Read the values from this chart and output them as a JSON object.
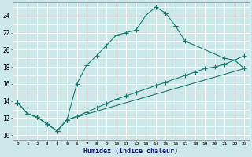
{
  "xlabel": "Humidex (Indice chaleur)",
  "bg_color": "#cde8e8",
  "grid_color": "#ffffff",
  "line_color": "#1a7a6e",
  "xlim": [
    -0.5,
    23.5
  ],
  "ylim": [
    9.5,
    25.5
  ],
  "xticks": [
    0,
    1,
    2,
    3,
    4,
    5,
    6,
    7,
    8,
    9,
    10,
    11,
    12,
    13,
    14,
    15,
    16,
    17,
    18,
    19,
    20,
    21,
    22,
    23
  ],
  "yticks": [
    10,
    12,
    14,
    16,
    18,
    20,
    22,
    24
  ],
  "line1_x": [
    0,
    1,
    2,
    3,
    4,
    5,
    6,
    7,
    8,
    9,
    10,
    11,
    12,
    13,
    14,
    15,
    16,
    17,
    21,
    22,
    23
  ],
  "line1_y": [
    13.8,
    12.5,
    12.1,
    11.3,
    10.5,
    11.8,
    16.0,
    18.2,
    19.3,
    20.5,
    21.7,
    22.0,
    22.3,
    24.0,
    25.0,
    24.3,
    22.8,
    21.0,
    19.0,
    18.8,
    19.3
  ],
  "line2_x": [
    0,
    1,
    2,
    3,
    4,
    5,
    6,
    7,
    8,
    9,
    10,
    11,
    12,
    13,
    14,
    15,
    16,
    17,
    18,
    19,
    20,
    21,
    22,
    23
  ],
  "line2_y": [
    13.8,
    12.5,
    12.1,
    11.3,
    10.5,
    11.8,
    12.2,
    12.7,
    13.2,
    13.7,
    14.2,
    14.6,
    15.0,
    15.4,
    15.8,
    16.2,
    16.6,
    17.0,
    17.4,
    17.8,
    18.0,
    18.3,
    18.8,
    17.8
  ],
  "line3_x": [
    0,
    1,
    2,
    3,
    4,
    5,
    23
  ],
  "line3_y": [
    13.8,
    12.5,
    12.1,
    11.3,
    10.5,
    11.8,
    17.8
  ],
  "marker_size": 2.5
}
